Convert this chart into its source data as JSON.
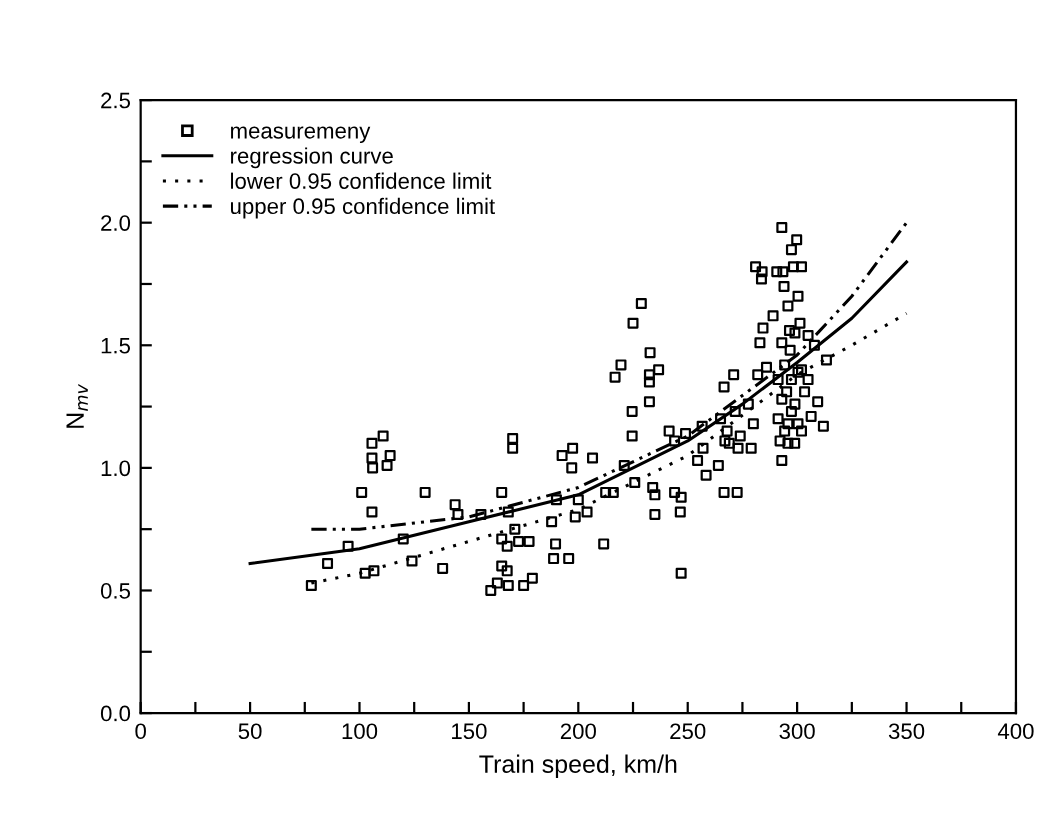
{
  "chart_data": {
    "type": "scatter",
    "xlabel": "Train speed, km/h",
    "ylabel": "N$_{mv}$",
    "xlim": [
      0,
      400
    ],
    "ylim": [
      0,
      2.5
    ],
    "xticks": [
      0,
      {
        "value": 25,
        "label": null
      },
      50,
      {
        "value": 75,
        "label": null
      },
      100,
      {
        "value": 125,
        "label": null
      },
      150,
      {
        "value": 175,
        "label": null
      },
      200,
      {
        "value": 225,
        "label": null
      },
      250,
      {
        "value": 275,
        "label": null
      },
      300,
      {
        "value": 325,
        "label": null
      },
      350,
      {
        "value": 375,
        "label": null
      },
      400
    ],
    "yticks": [
      {
        "value": 0,
        "label": "0.0"
      },
      {
        "value": 0.25,
        "label": null
      },
      0.5,
      {
        "value": 0.75,
        "label": null
      },
      {
        "value": 1,
        "label": "1.0"
      },
      {
        "value": 1.25,
        "label": null
      },
      1.5,
      {
        "value": 1.75,
        "label": null
      },
      {
        "value": 2,
        "label": "2.0"
      },
      {
        "value": 2.25,
        "label": null
      },
      2.5
    ],
    "grid": false,
    "legend": "top left",
    "series": [
      {
        "name": "measuremeny",
        "marker": "square",
        "color": "#000000",
        "x": [
          78,
          85.4,
          94.8,
          101,
          105.7,
          102.6,
          106.6,
          105.7,
          105.7,
          106,
          110.8,
          112.6,
          114,
          120,
          124,
          130,
          138,
          143.7,
          145,
          155.5,
          160,
          163,
          165,
          165,
          167.5,
          168,
          168,
          165,
          167.5,
          170,
          170,
          171,
          172.7,
          175,
          177.5,
          179,
          189.6,
          188.7,
          187.8,
          190,
          192.6,
          195.6,
          197.4,
          197,
          198.6,
          200,
          204,
          206.5,
          211.6,
          212.5,
          216,
          216.8,
          219.5,
          221,
          224.6,
          224.6,
          225,
          225.8,
          228.8,
          232.8,
          232.5,
          232.5,
          232.5,
          236.7,
          234,
          235,
          235,
          241.5,
          244,
          244,
          246.6,
          247,
          247,
          249,
          254.5,
          256.6,
          257,
          258.4,
          264,
          265,
          266.6,
          267,
          268,
          269,
          266.6,
          271,
          271.7,
          272.6,
          273,
          274,
          277.7,
          279,
          280,
          281,
          284,
          283.7,
          283,
          284.4,
          282,
          286,
          289,
          290.7,
          293,
          293,
          293.5,
          294,
          295.8,
          296.5,
          296.8,
          297.4,
          298.3,
          299.8,
          302,
          300.4,
          301.3,
          291.3,
          293,
          291.3,
          292.2,
          295.8,
          298.9,
          294.3,
          297.4,
          299,
          300.4,
          295.2,
          302,
          303.4,
          305,
          305,
          306.4,
          307.9,
          309.4,
          312,
          313.4,
          293,
          294.3,
          297.4,
          299,
          302,
          295.8,
          300.4
        ],
        "values": [
          0.52,
          0.61,
          0.68,
          0.9,
          0.82,
          0.57,
          0.58,
          1.1,
          1.04,
          1.0,
          1.13,
          1.01,
          1.05,
          0.71,
          0.62,
          0.9,
          0.59,
          0.85,
          0.81,
          0.81,
          0.5,
          0.53,
          0.9,
          0.6,
          0.58,
          0.82,
          0.52,
          0.71,
          0.68,
          1.08,
          1.12,
          0.75,
          0.7,
          0.52,
          0.7,
          0.55,
          0.69,
          0.63,
          0.78,
          0.87,
          1.05,
          0.63,
          1.08,
          1.0,
          0.8,
          0.87,
          0.82,
          1.04,
          0.69,
          0.9,
          0.9,
          1.37,
          1.42,
          1.01,
          1.23,
          1.13,
          1.59,
          0.94,
          1.67,
          1.47,
          1.38,
          1.35,
          1.27,
          1.4,
          0.92,
          0.89,
          0.81,
          1.15,
          1.11,
          0.9,
          0.82,
          0.88,
          0.57,
          1.14,
          1.03,
          1.17,
          1.08,
          0.97,
          1.01,
          1.2,
          1.33,
          1.11,
          1.15,
          1.1,
          0.9,
          1.38,
          1.23,
          0.9,
          1.08,
          1.13,
          1.26,
          1.08,
          1.18,
          1.82,
          1.8,
          1.77,
          1.51,
          1.57,
          1.38,
          1.41,
          1.62,
          1.8,
          1.03,
          1.98,
          1.8,
          1.74,
          1.66,
          1.56,
          1.48,
          1.89,
          1.82,
          1.93,
          1.82,
          1.7,
          1.59,
          1.36,
          1.28,
          1.2,
          1.11,
          1.1,
          1.1,
          1.42,
          1.36,
          1.26,
          1.18,
          1.31,
          1.4,
          1.31,
          1.54,
          1.36,
          1.21,
          1.5,
          1.27,
          1.17,
          1.44,
          1.51,
          1.15,
          1.23,
          1.55,
          1.15,
          1.18,
          1.39
        ]
      },
      {
        "name": "regression curve",
        "type": "line",
        "line_style": "solid",
        "color": "#000000",
        "x": [
          50,
          100,
          150,
          200,
          250,
          275,
          300,
          325,
          350
        ],
        "values": [
          0.61,
          0.67,
          0.78,
          0.89,
          1.11,
          1.26,
          1.43,
          1.61,
          1.84
        ]
      },
      {
        "name": "lower 0.95 confidence limit",
        "type": "line",
        "line_style": "dotted",
        "color": "#000000",
        "x": [
          78,
          100,
          150,
          200,
          250,
          300,
          325,
          350
        ],
        "values": [
          0.53,
          0.57,
          0.7,
          0.83,
          1.05,
          1.38,
          1.5,
          1.63
        ]
      },
      {
        "name": "upper 0.95 confidence limit",
        "type": "line",
        "line_style": "dashdotdot",
        "color": "#000000",
        "x": [
          78,
          100,
          150,
          200,
          250,
          300,
          325,
          350
        ],
        "values": [
          0.75,
          0.75,
          0.8,
          0.92,
          1.13,
          1.46,
          1.7,
          2.0
        ]
      }
    ]
  }
}
